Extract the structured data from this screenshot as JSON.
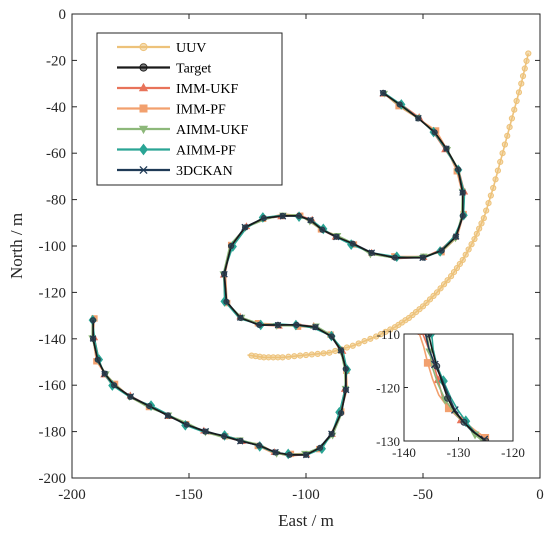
{
  "chart_data": {
    "type": "line",
    "title": "",
    "xlabel": "East / m",
    "ylabel": "North / m",
    "xlim": [
      -200,
      0
    ],
    "ylim": [
      -200,
      0
    ],
    "grid": false,
    "legend_position": "top-left",
    "xticks": [
      "-200",
      "-150",
      "-100",
      "-50",
      "0"
    ],
    "yticks": [
      "0",
      "-20",
      "-40",
      "-60",
      "-80",
      "-100",
      "-120",
      "-140",
      "-160",
      "-180",
      "-200"
    ],
    "target_path": {
      "x": [
        -67,
        -60,
        -52,
        -45,
        -40,
        -35,
        -33,
        -33,
        -36,
        -42,
        -50,
        -62,
        -72,
        -80,
        -87,
        -93,
        -98,
        -103,
        -110,
        -118,
        -126,
        -132,
        -135,
        -134,
        -128,
        -120,
        -112,
        -104,
        -96,
        -89,
        -85,
        -83,
        -83,
        -85,
        -89,
        -94,
        -100,
        -107,
        -113,
        -120,
        -128,
        -135,
        -143,
        -151,
        -159,
        -167,
        -175,
        -182,
        -186,
        -189,
        -191,
        -191
      ],
      "y": [
        -34,
        -39,
        -45,
        -51,
        -58,
        -67,
        -77,
        -87,
        -96,
        -102,
        -105,
        -105,
        -103,
        -99,
        -96,
        -93,
        -89,
        -87,
        -87,
        -88,
        -92,
        -100,
        -112,
        -124,
        -131,
        -134,
        -134,
        -134,
        -135,
        -139,
        -145,
        -153,
        -162,
        -172,
        -181,
        -187,
        -190,
        -190,
        -189,
        -186,
        -184,
        -182,
        -180,
        -177,
        -173,
        -169,
        -165,
        -160,
        -155,
        -149,
        -140,
        -132
      ]
    },
    "uuv_path": {
      "x": [
        -5,
        -8,
        -12,
        -16,
        -20,
        -24,
        -28,
        -33,
        -38,
        -44,
        -50,
        -56,
        -62,
        -70,
        -80,
        -90,
        -100,
        -110,
        -118,
        -125
      ],
      "y": [
        -17,
        -30,
        -45,
        -60,
        -75,
        -88,
        -97,
        -106,
        -113,
        -120,
        -126,
        -131,
        -135,
        -139,
        -143,
        -146,
        -147,
        -148,
        -148,
        -147
      ]
    },
    "series": [
      {
        "name": "UUV",
        "color": "#EDC27A",
        "marker": "circle"
      },
      {
        "name": "Target",
        "color": "#1A1A1A",
        "marker": "circle"
      },
      {
        "name": "IMM-UKF",
        "color": "#E8735A",
        "marker": "triangle-up"
      },
      {
        "name": "IMM-PF",
        "color": "#F2A06E",
        "marker": "square"
      },
      {
        "name": "AIMM-UKF",
        "color": "#8DB87A",
        "marker": "triangle-down"
      },
      {
        "name": "AIMM-PF",
        "color": "#2AA595",
        "marker": "diamond"
      },
      {
        "name": "3DCKAN",
        "color": "#1F3A56",
        "marker": "x"
      }
    ],
    "inset": {
      "xlim": [
        -140,
        -120
      ],
      "ylim": [
        -130,
        -110
      ],
      "xticks": [
        "-140",
        "-130",
        "-120"
      ],
      "yticks": [
        "-110",
        "-120",
        "-130"
      ],
      "target_path": {
        "x": [
          -135.5,
          -134.8,
          -134.0,
          -133.0,
          -132.0,
          -130.7,
          -129.0,
          -127.0,
          -125.0
        ],
        "y": [
          -110,
          -113,
          -116,
          -119,
          -122,
          -124.5,
          -126.5,
          -128.5,
          -130
        ]
      }
    }
  }
}
